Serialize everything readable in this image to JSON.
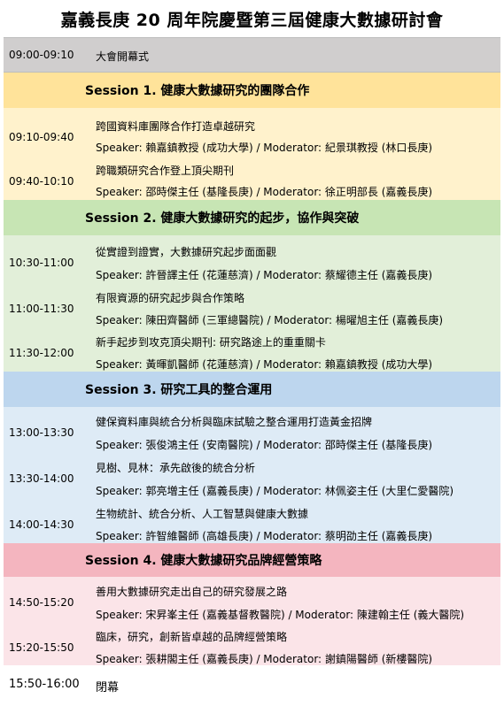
{
  "page_title": "嘉義長庚 20 周年院慶暨第三屆健康大數據研討會",
  "opening": {
    "time": "09:00-09:10",
    "label": "大會開幕式"
  },
  "sessions": [
    {
      "heading": "Session 1.  健康大數據研究的團隊合作",
      "talks": [
        {
          "time": "09:10-09:40",
          "title": "跨國資料庫團隊合作打造卓越研究",
          "speakers": "Speaker:  賴嘉鎮教授  (成功大學) / Moderator:  紀景琪教授  (林口長庚)"
        },
        {
          "time": "09:40-10:10",
          "title": "跨職類研究合作登上頂尖期刊",
          "speakers": "Speaker:  邵時傑主任  (基隆長庚) / Moderator:  徐正明部長  (嘉義長庚)"
        }
      ]
    },
    {
      "heading": "Session 2.  健康大數據研究的起步，協作與突破",
      "talks": [
        {
          "time": "10:30-11:00",
          "title": "從實證到證實，大數據研究起步面面觀",
          "speakers": "Speaker:  許晉譯主任  (花蓮慈濟) / Moderator:  蔡耀德主任  (嘉義長庚)"
        },
        {
          "time": "11:00-11:30",
          "title": "有限資源的研究起步與合作策略",
          "speakers": "Speaker:  陳田齊醫師  (三軍總醫院) / Moderator:  楊曜旭主任  (嘉義長庚)"
        },
        {
          "time": "11:30-12:00",
          "title": "新手起步到攻克頂尖期刊:  研究路途上的重重關卡",
          "speakers": "Speaker:  黃暉凱醫師  (花蓮慈濟) / Moderator:  賴嘉鎮教授  (成功大學)"
        }
      ]
    },
    {
      "heading": "Session 3.  研究工具的整合運用",
      "talks": [
        {
          "time": "13:00-13:30",
          "title": "健保資料庫與統合分析與臨床試驗之整合運用打造黃金招牌",
          "speakers": "Speaker:  張俊鴻主任  (安南醫院) / Moderator:  邵時傑主任  (基隆長庚)"
        },
        {
          "time": "13:30-14:00",
          "title": "見樹、見林：承先啟後的統合分析",
          "speakers": "Speaker:  郭亮増主任  (嘉義長庚) / Moderator:  林佩姿主任  (大里仁愛醫院)"
        },
        {
          "time": "14:00-14:30",
          "title": "生物統計、統合分析、人工智慧與健康大數據",
          "speakers": "Speaker:  許智維醫師  (高雄長庚) / Moderator:  蔡明劭主任  (嘉義長庚)"
        }
      ]
    },
    {
      "heading": "Session 4.  健康大數據研究品牌經營策略",
      "talks": [
        {
          "time": "14:50-15:20",
          "title": "善用大數據研究走出自己的研究發展之路",
          "speakers": "Speaker:  宋昇峯主任  (嘉義基督教醫院) / Moderator:  陳建翰主任  (義大醫院)"
        },
        {
          "time": "15:20-15:50",
          "title": "臨床，研究，創新皆卓越的品牌經營策略",
          "speakers": "Speaker:  張耕閣主任  (嘉義長庚) / Moderator:  謝鎮陽醫師  (新樓醫院)"
        }
      ]
    }
  ],
  "closing": {
    "time": "15:50-16:00",
    "label": "閉幕"
  }
}
